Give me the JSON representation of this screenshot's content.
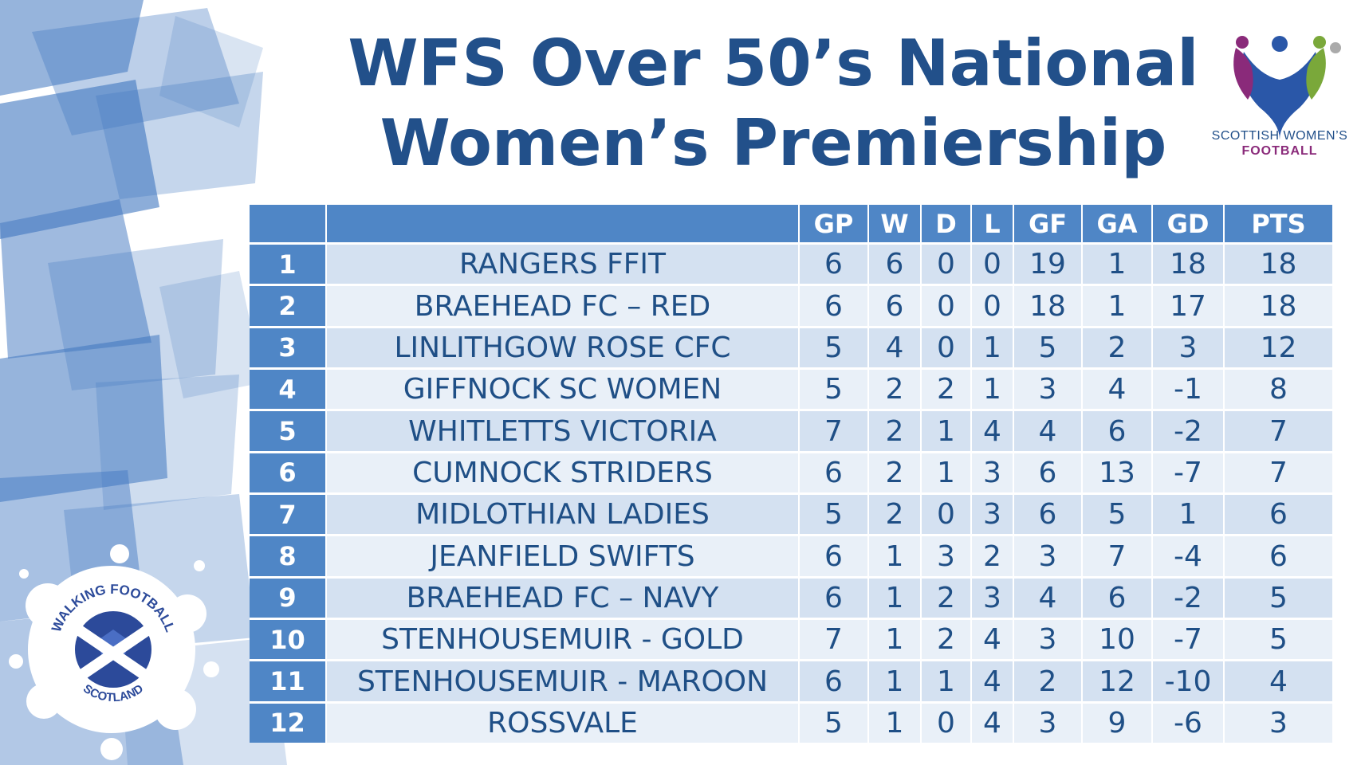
{
  "title": {
    "line1": "WFS Over 50’s National",
    "line2": "Women’s Premiership"
  },
  "logo": {
    "line1": "SCOTTISH WOMEN’S",
    "line2": "FOOTBALL"
  },
  "badge": {
    "top_text": "WALKING FOOTBALL",
    "bottom_text": "SCOTLAND"
  },
  "colors": {
    "title": "#22508a",
    "header_bg": "#4f86c6",
    "row_dark": "#d4e1f1",
    "row_light": "#e9f0f8"
  },
  "table": {
    "columns": [
      "",
      "",
      "GP",
      "W",
      "D",
      "L",
      "GF",
      "GA",
      "GD",
      "PTS"
    ],
    "rows": [
      [
        "1",
        "RANGERS FFIT",
        "6",
        "6",
        "0",
        "0",
        "19",
        "1",
        "18",
        "18"
      ],
      [
        "2",
        "BRAEHEAD FC – RED",
        "6",
        "6",
        "0",
        "0",
        "18",
        "1",
        "17",
        "18"
      ],
      [
        "3",
        "LINLITHGOW ROSE CFC",
        "5",
        "4",
        "0",
        "1",
        "5",
        "2",
        "3",
        "12"
      ],
      [
        "4",
        "GIFFNOCK SC WOMEN",
        "5",
        "2",
        "2",
        "1",
        "3",
        "4",
        "-1",
        "8"
      ],
      [
        "5",
        "WHITLETTS VICTORIA",
        "7",
        "2",
        "1",
        "4",
        "4",
        "6",
        "-2",
        "7"
      ],
      [
        "6",
        "CUMNOCK STRIDERS",
        "6",
        "2",
        "1",
        "3",
        "6",
        "13",
        "-7",
        "7"
      ],
      [
        "7",
        "MIDLOTHIAN LADIES",
        "5",
        "2",
        "0",
        "3",
        "6",
        "5",
        "1",
        "6"
      ],
      [
        "8",
        "JEANFIELD SWIFTS",
        "6",
        "1",
        "3",
        "2",
        "3",
        "7",
        "-4",
        "6"
      ],
      [
        "9",
        "BRAEHEAD FC – NAVY",
        "6",
        "1",
        "2",
        "3",
        "4",
        "6",
        "-2",
        "5"
      ],
      [
        "10",
        "STENHOUSEMUIR - GOLD",
        "7",
        "1",
        "2",
        "4",
        "3",
        "10",
        "-7",
        "5"
      ],
      [
        "11",
        "STENHOUSEMUIR - MAROON",
        "6",
        "1",
        "1",
        "4",
        "2",
        "12",
        "-10",
        "4"
      ],
      [
        "12",
        "ROSSVALE",
        "5",
        "1",
        "0",
        "4",
        "3",
        "9",
        "-6",
        "3"
      ]
    ]
  }
}
